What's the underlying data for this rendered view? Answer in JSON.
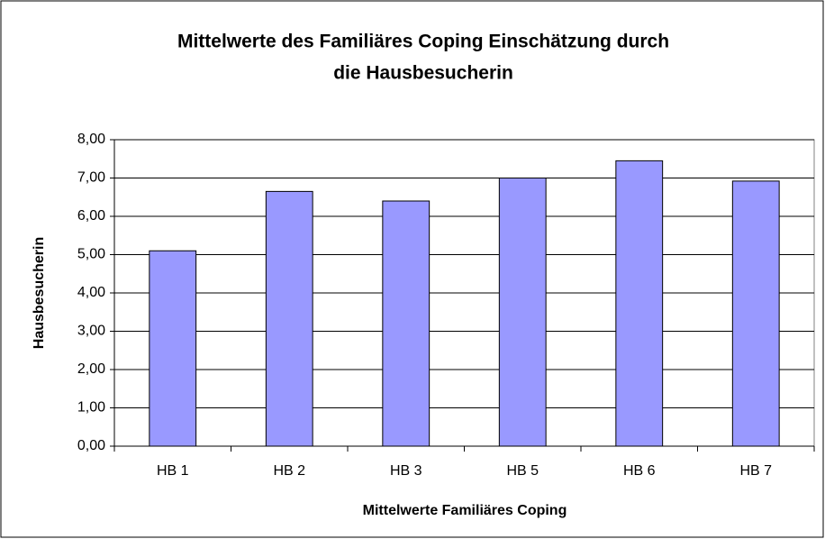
{
  "chart_data": {
    "type": "bar",
    "title": [
      "Mittelwerte des Familiäres Coping Einschätzung durch",
      "die Hausbesucherin"
    ],
    "xlabel": "Mittelwerte Familiäres Coping",
    "ylabel": "Hausbesucherin",
    "categories": [
      "HB 1",
      "HB 2",
      "HB 3",
      "HB 5",
      "HB 6",
      "HB 7"
    ],
    "values": [
      5.1,
      6.65,
      6.4,
      7.0,
      7.45,
      6.92
    ],
    "color": "#9999ff",
    "ylim": [
      0,
      8
    ],
    "yticks": [
      {
        "value": 0,
        "label": "0,00"
      },
      {
        "value": 1,
        "label": "1,00"
      },
      {
        "value": 2,
        "label": "2,00"
      },
      {
        "value": 3,
        "label": "3,00"
      },
      {
        "value": 4,
        "label": "4,00"
      },
      {
        "value": 5,
        "label": "5,00"
      },
      {
        "value": 6,
        "label": "6,00"
      },
      {
        "value": 7,
        "label": "7,00"
      },
      {
        "value": 8,
        "label": "8,00"
      }
    ],
    "grid": true
  }
}
